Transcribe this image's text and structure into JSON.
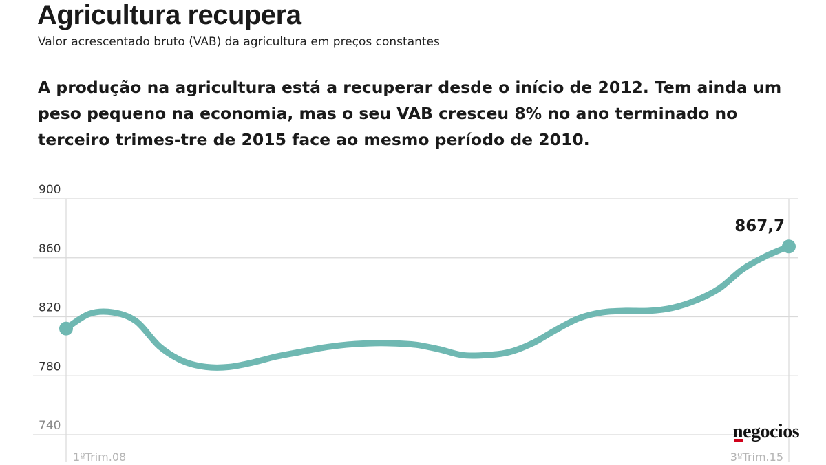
{
  "header": {
    "title": "Agricultura recupera",
    "subtitle": "Valor acrescentado bruto (VAB) da agricultura em preços constantes",
    "lead": "A produção na agricultura está a recuperar desde o início de 2012. Tem ainda um peso pequeno na economia, mas o seu VAB cresceu 8% no ano terminado no terceiro trimes-tre de 2015 face ao mesmo período de 2010."
  },
  "brand": {
    "logo_text": "negocios",
    "accent_color": "#d0021b"
  },
  "colors": {
    "line": "#6fb8b2",
    "grid": "#d9d9d9",
    "tick_text": "#333333",
    "x_tick_text": "#b5b5b5"
  },
  "chart_data": {
    "type": "line",
    "title": "",
    "xlabel": "",
    "ylabel": "",
    "ylim": [
      740,
      900
    ],
    "yticks": [
      900,
      860,
      820,
      780,
      740
    ],
    "y_tick_labels": [
      "900",
      "860",
      "820",
      "780",
      "740"
    ],
    "x_tick_labels": [
      "1ºTrim.08",
      "3ºTrim.15"
    ],
    "grid": true,
    "annotation": {
      "text": "867,7",
      "value": 867.7
    },
    "series": [
      {
        "values": [
          812,
          822,
          823,
          817,
          800,
          790,
          786,
          786,
          789,
          793,
          796,
          799,
          801,
          802,
          802,
          801,
          798,
          794,
          794,
          796,
          802,
          811,
          819,
          823,
          824,
          824,
          826,
          831,
          839,
          852,
          861,
          867.7
        ]
      }
    ]
  }
}
